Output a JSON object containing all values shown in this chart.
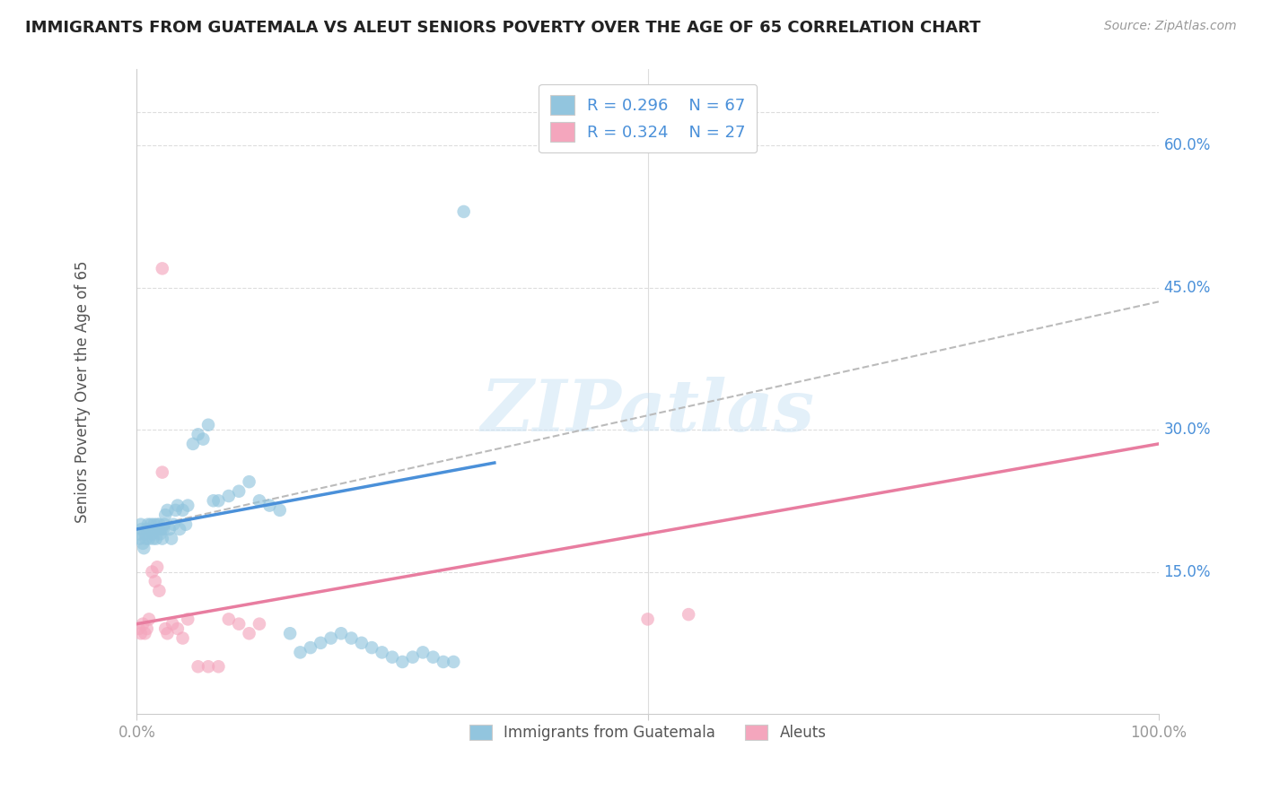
{
  "title": "IMMIGRANTS FROM GUATEMALA VS ALEUT SENIORS POVERTY OVER THE AGE OF 65 CORRELATION CHART",
  "source": "Source: ZipAtlas.com",
  "ylabel": "Seniors Poverty Over the Age of 65",
  "xlim": [
    0,
    1
  ],
  "ylim": [
    0,
    0.68
  ],
  "ytick_positions": [
    0.15,
    0.3,
    0.45,
    0.6
  ],
  "ytick_labels": [
    "15.0%",
    "30.0%",
    "45.0%",
    "60.0%"
  ],
  "color_blue": "#92c5de",
  "color_pink": "#f4a6bd",
  "color_blue_line": "#4a90d9",
  "color_pink_line": "#e87da0",
  "color_blue_text": "#4a90d9",
  "watermark": "ZIPatlas",
  "blue_scatter_x": [
    0.002,
    0.003,
    0.004,
    0.005,
    0.006,
    0.007,
    0.008,
    0.009,
    0.01,
    0.011,
    0.012,
    0.013,
    0.014,
    0.015,
    0.016,
    0.017,
    0.018,
    0.019,
    0.02,
    0.021,
    0.022,
    0.023,
    0.024,
    0.025,
    0.026,
    0.027,
    0.028,
    0.03,
    0.032,
    0.034,
    0.036,
    0.038,
    0.04,
    0.042,
    0.045,
    0.048,
    0.05,
    0.055,
    0.06,
    0.065,
    0.07,
    0.075,
    0.08,
    0.09,
    0.1,
    0.11,
    0.12,
    0.13,
    0.14,
    0.15,
    0.16,
    0.17,
    0.18,
    0.19,
    0.2,
    0.21,
    0.22,
    0.23,
    0.24,
    0.25,
    0.26,
    0.27,
    0.28,
    0.29,
    0.3,
    0.31,
    0.32
  ],
  "blue_scatter_y": [
    0.19,
    0.185,
    0.2,
    0.195,
    0.18,
    0.175,
    0.19,
    0.185,
    0.195,
    0.2,
    0.185,
    0.195,
    0.2,
    0.19,
    0.185,
    0.2,
    0.195,
    0.185,
    0.2,
    0.195,
    0.2,
    0.19,
    0.195,
    0.185,
    0.195,
    0.2,
    0.21,
    0.215,
    0.195,
    0.185,
    0.2,
    0.215,
    0.22,
    0.195,
    0.215,
    0.2,
    0.22,
    0.285,
    0.295,
    0.29,
    0.305,
    0.225,
    0.225,
    0.23,
    0.235,
    0.245,
    0.225,
    0.22,
    0.215,
    0.085,
    0.065,
    0.07,
    0.075,
    0.08,
    0.085,
    0.08,
    0.075,
    0.07,
    0.065,
    0.06,
    0.055,
    0.06,
    0.065,
    0.06,
    0.055,
    0.055,
    0.53
  ],
  "pink_scatter_x": [
    0.002,
    0.004,
    0.006,
    0.008,
    0.01,
    0.012,
    0.015,
    0.018,
    0.02,
    0.022,
    0.025,
    0.028,
    0.03,
    0.035,
    0.04,
    0.045,
    0.05,
    0.06,
    0.07,
    0.08,
    0.09,
    0.1,
    0.11,
    0.12,
    0.025,
    0.5,
    0.54
  ],
  "pink_scatter_y": [
    0.09,
    0.085,
    0.095,
    0.085,
    0.09,
    0.1,
    0.15,
    0.14,
    0.155,
    0.13,
    0.255,
    0.09,
    0.085,
    0.095,
    0.09,
    0.08,
    0.1,
    0.05,
    0.05,
    0.05,
    0.1,
    0.095,
    0.085,
    0.095,
    0.47,
    0.1,
    0.105
  ],
  "blue_line_x": [
    0.0,
    0.35
  ],
  "blue_line_y": [
    0.195,
    0.265
  ],
  "pink_line_x": [
    0.0,
    1.0
  ],
  "pink_line_y": [
    0.095,
    0.285
  ],
  "dashed_line_x": [
    0.0,
    1.0
  ],
  "dashed_line_y": [
    0.195,
    0.435
  ]
}
